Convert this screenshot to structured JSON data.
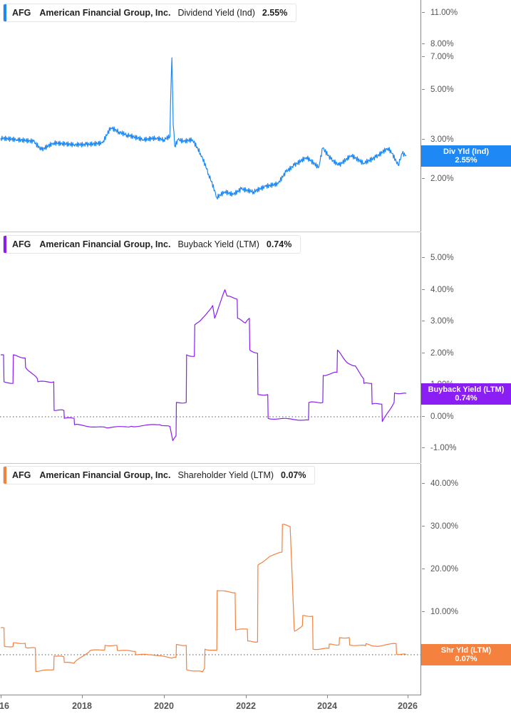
{
  "colors": {
    "dividend": "#1e88f5",
    "buyback": "#8a1ef5",
    "shareholder": "#f5813f",
    "axis": "#888888",
    "tick_text": "#555555"
  },
  "legends": [
    {
      "ticker": "AFG",
      "company": "American Financial Group, Inc.",
      "metric": "Dividend Yield (Ind)",
      "value": "2.55%"
    },
    {
      "ticker": "AFG",
      "company": "American Financial Group, Inc.",
      "metric": "Buyback Yield (LTM)",
      "value": "0.74%"
    },
    {
      "ticker": "AFG",
      "company": "American Financial Group, Inc.",
      "metric": "Shareholder Yield (LTM)",
      "value": "0.07%"
    }
  ],
  "badges": [
    {
      "line1": "Div Yld (Ind)",
      "line2": "2.55%"
    },
    {
      "line1": "Buyback Yield (LTM)",
      "line2": "0.74%"
    },
    {
      "line1": "Shr Yld (LTM)",
      "line2": "0.07%"
    }
  ],
  "x_axis": {
    "labels": [
      "16",
      "2018",
      "2020",
      "2022",
      "2024",
      "2026"
    ]
  },
  "chart_data": [
    {
      "type": "line",
      "title": "AFG American Financial Group, Inc. Dividend Yield (Ind)",
      "current_value": "2.55%",
      "xlabel": "",
      "ylabel": "",
      "yscale": "log",
      "ylim": [
        1.3,
        12
      ],
      "yticks": [
        "11.00%",
        "8.00%",
        "7.00%",
        "5.00%",
        "3.00%",
        "2.00%"
      ],
      "x": [
        2016.0,
        2016.4,
        2016.8,
        2017.0,
        2017.3,
        2017.8,
        2018.1,
        2018.5,
        2018.7,
        2018.9,
        2019.1,
        2019.5,
        2019.8,
        2020.0,
        2020.15,
        2020.2,
        2020.23,
        2020.27,
        2020.35,
        2020.5,
        2020.7,
        2020.9,
        2021.1,
        2021.3,
        2021.5,
        2021.7,
        2021.9,
        2022.2,
        2022.5,
        2022.8,
        2023.0,
        2023.2,
        2023.5,
        2023.8,
        2023.9,
        2024.1,
        2024.3,
        2024.6,
        2024.9,
        2025.2,
        2025.5,
        2025.6,
        2025.75,
        2025.85,
        2025.95
      ],
      "series": [
        {
          "name": "Dividend Yield (Ind)",
          "values": [
            3.05,
            3.0,
            2.95,
            2.7,
            2.9,
            2.85,
            2.85,
            2.9,
            3.4,
            3.25,
            3.15,
            3.0,
            3.05,
            3.0,
            3.1,
            7.0,
            3.5,
            2.8,
            3.0,
            2.95,
            3.0,
            2.6,
            2.1,
            1.65,
            1.75,
            1.7,
            1.8,
            1.75,
            1.85,
            1.9,
            2.15,
            2.3,
            2.5,
            2.25,
            2.75,
            2.45,
            2.3,
            2.55,
            2.35,
            2.5,
            2.75,
            2.6,
            2.3,
            2.6,
            2.55
          ]
        }
      ]
    },
    {
      "type": "line",
      "title": "AFG American Financial Group, Inc. Buyback Yield (LTM)",
      "current_value": "0.74%",
      "xlabel": "",
      "ylabel": "",
      "ylim": [
        -1.4,
        5.6
      ],
      "yticks": [
        "5.00%",
        "4.00%",
        "3.00%",
        "2.00%",
        "1.00%",
        "0.00%",
        "-1.00%"
      ],
      "x": [
        2016.0,
        2016.07,
        2016.08,
        2016.3,
        2016.31,
        2016.6,
        2016.61,
        2016.9,
        2016.91,
        2017.3,
        2017.31,
        2017.55,
        2017.56,
        2017.8,
        2017.81,
        2018.6,
        2019.2,
        2019.9,
        2020.15,
        2020.22,
        2020.3,
        2020.31,
        2020.55,
        2020.56,
        2020.75,
        2020.76,
        2020.95,
        2021.2,
        2021.25,
        2021.5,
        2021.55,
        2021.8,
        2021.81,
        2022.0,
        2022.1,
        2022.11,
        2022.3,
        2022.31,
        2022.55,
        2022.56,
        2023.55,
        2023.56,
        2023.9,
        2023.91,
        2024.25,
        2024.26,
        2024.5,
        2024.7,
        2024.9,
        2024.91,
        2025.1,
        2025.11,
        2025.35,
        2025.36,
        2025.65,
        2025.66,
        2025.95
      ],
      "series": [
        {
          "name": "Buyback Yield (LTM)",
          "values": [
            1.95,
            1.95,
            1.1,
            1.05,
            1.95,
            1.85,
            1.55,
            1.2,
            1.1,
            1.1,
            0.2,
            0.2,
            -0.05,
            -0.05,
            -0.25,
            -0.35,
            -0.3,
            -0.25,
            -0.3,
            -0.75,
            -0.6,
            0.45,
            0.45,
            1.95,
            1.9,
            2.9,
            3.1,
            3.5,
            3.1,
            4.0,
            3.8,
            3.7,
            3.1,
            2.95,
            3.1,
            2.1,
            2.0,
            0.7,
            0.7,
            -0.05,
            -0.1,
            0.45,
            0.45,
            1.3,
            1.4,
            2.1,
            1.7,
            1.6,
            1.2,
            1.05,
            1.05,
            0.4,
            0.4,
            -0.15,
            0.45,
            0.75,
            0.74
          ]
        }
      ]
    },
    {
      "type": "line",
      "title": "AFG American Financial Group, Inc. Shareholder Yield (LTM)",
      "current_value": "0.07%",
      "xlabel": "",
      "ylabel": "",
      "ylim": [
        -5,
        45
      ],
      "yticks": [
        "40.00%",
        "30.00%",
        "20.00%",
        "10.00%",
        "0.00%"
      ],
      "x": [
        2016.0,
        2016.08,
        2016.09,
        2016.3,
        2016.31,
        2016.6,
        2016.61,
        2016.85,
        2016.86,
        2017.3,
        2017.31,
        2017.55,
        2017.56,
        2017.8,
        2017.81,
        2018.2,
        2018.55,
        2018.56,
        2018.85,
        2018.86,
        2019.3,
        2019.31,
        2019.7,
        2020.2,
        2020.3,
        2020.31,
        2020.55,
        2020.56,
        2020.95,
        2021.0,
        2021.01,
        2021.3,
        2021.31,
        2021.75,
        2021.76,
        2022.05,
        2022.06,
        2022.3,
        2022.31,
        2022.6,
        2022.9,
        2022.91,
        2023.1,
        2023.2,
        2023.21,
        2023.4,
        2023.41,
        2023.65,
        2023.66,
        2024.05,
        2024.06,
        2024.3,
        2024.31,
        2024.55,
        2024.56,
        2024.95,
        2024.96,
        2025.2,
        2025.7,
        2025.71,
        2025.95
      ],
      "series": [
        {
          "name": "Shareholder Yield (LTM)",
          "values": [
            6.3,
            6.3,
            2.0,
            1.9,
            2.8,
            2.7,
            1.7,
            1.6,
            -3.9,
            -3.5,
            -0.3,
            -0.5,
            -1.8,
            -2.0,
            -1.8,
            1.0,
            1.1,
            2.2,
            2.2,
            1.0,
            0.8,
            0.0,
            0.0,
            -0.8,
            -0.6,
            2.4,
            2.2,
            -3.5,
            -4.0,
            -3.2,
            1.3,
            1.0,
            15.0,
            14.5,
            5.8,
            6.0,
            3.2,
            3.0,
            21.0,
            23.0,
            24.0,
            30.5,
            30.0,
            6.0,
            5.5,
            6.8,
            9.2,
            9.0,
            1.3,
            1.5,
            2.5,
            2.3,
            4.0,
            4.0,
            2.3,
            2.1,
            2.6,
            2.0,
            2.6,
            0.1,
            0.07
          ]
        }
      ]
    }
  ]
}
